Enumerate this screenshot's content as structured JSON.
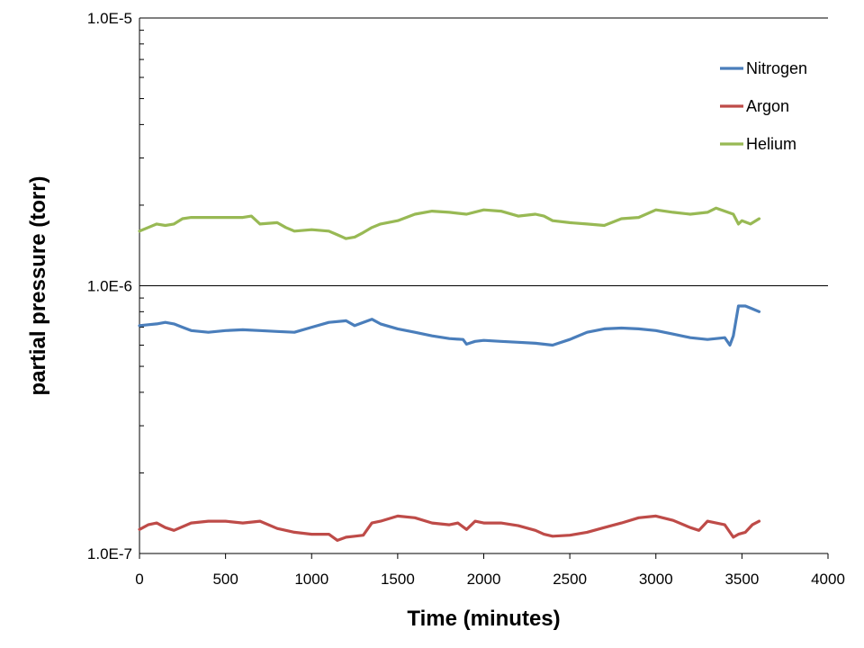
{
  "chart_data": {
    "type": "line",
    "title": "",
    "xlabel": "Time (minutes)",
    "ylabel": "partial pressure (torr)",
    "xlim": [
      0,
      4000
    ],
    "ylim": [
      1e-07,
      1e-05
    ],
    "yscale": "log",
    "x_ticks": [
      0,
      500,
      1000,
      1500,
      2000,
      2500,
      3000,
      3500,
      4000
    ],
    "x_tick_labels": [
      "0",
      "500",
      "1000",
      "1500",
      "2000",
      "2500",
      "3000",
      "3500",
      "4000"
    ],
    "y_ticks": [
      1e-07,
      1e-06,
      1e-05
    ],
    "y_tick_labels": [
      "1.0E-7",
      "1.0E-6",
      "1.0E-5"
    ],
    "grid": "major-y",
    "legend": "top-right",
    "series": [
      {
        "name": "Nitrogen",
        "color": "#4a7ebb",
        "x": [
          0,
          50,
          100,
          150,
          200,
          250,
          300,
          400,
          500,
          600,
          700,
          800,
          900,
          1000,
          1100,
          1200,
          1250,
          1300,
          1350,
          1400,
          1500,
          1600,
          1700,
          1800,
          1880,
          1900,
          1950,
          2000,
          2100,
          2200,
          2300,
          2400,
          2500,
          2600,
          2700,
          2800,
          2900,
          3000,
          3100,
          3200,
          3300,
          3400,
          3430,
          3450,
          3480,
          3520,
          3560,
          3600
        ],
        "y": [
          7.1e-07,
          7.15e-07,
          7.2e-07,
          7.3e-07,
          7.2e-07,
          7e-07,
          6.8e-07,
          6.7e-07,
          6.8e-07,
          6.85e-07,
          6.8e-07,
          6.75e-07,
          6.7e-07,
          7e-07,
          7.3e-07,
          7.4e-07,
          7.1e-07,
          7.3e-07,
          7.5e-07,
          7.2e-07,
          6.9e-07,
          6.7e-07,
          6.5e-07,
          6.35e-07,
          6.3e-07,
          6.05e-07,
          6.2e-07,
          6.25e-07,
          6.2e-07,
          6.15e-07,
          6.1e-07,
          6e-07,
          6.3e-07,
          6.7e-07,
          6.9e-07,
          6.95e-07,
          6.9e-07,
          6.8e-07,
          6.6e-07,
          6.4e-07,
          6.3e-07,
          6.4e-07,
          6e-07,
          6.5e-07,
          8.4e-07,
          8.4e-07,
          8.2e-07,
          8e-07
        ]
      },
      {
        "name": "Argon",
        "color": "#be4b48",
        "x": [
          0,
          50,
          100,
          150,
          200,
          300,
          400,
          500,
          600,
          700,
          800,
          900,
          1000,
          1100,
          1150,
          1200,
          1250,
          1300,
          1350,
          1400,
          1500,
          1600,
          1700,
          1800,
          1850,
          1900,
          1950,
          2000,
          2100,
          2200,
          2300,
          2350,
          2400,
          2500,
          2600,
          2700,
          2800,
          2900,
          3000,
          3100,
          3200,
          3250,
          3300,
          3400,
          3450,
          3480,
          3520,
          3560,
          3600
        ],
        "y": [
          1.23e-07,
          1.28e-07,
          1.3e-07,
          1.25e-07,
          1.22e-07,
          1.3e-07,
          1.32e-07,
          1.32e-07,
          1.3e-07,
          1.32e-07,
          1.24e-07,
          1.2e-07,
          1.18e-07,
          1.18e-07,
          1.12e-07,
          1.15e-07,
          1.16e-07,
          1.17e-07,
          1.3e-07,
          1.32e-07,
          1.38e-07,
          1.36e-07,
          1.3e-07,
          1.28e-07,
          1.3e-07,
          1.23e-07,
          1.32e-07,
          1.3e-07,
          1.3e-07,
          1.27e-07,
          1.22e-07,
          1.18e-07,
          1.16e-07,
          1.17e-07,
          1.2e-07,
          1.25e-07,
          1.3e-07,
          1.36e-07,
          1.38e-07,
          1.33e-07,
          1.25e-07,
          1.22e-07,
          1.32e-07,
          1.28e-07,
          1.15e-07,
          1.18e-07,
          1.2e-07,
          1.28e-07,
          1.32e-07
        ]
      },
      {
        "name": "Helium",
        "color": "#98b954",
        "x": [
          0,
          50,
          100,
          150,
          200,
          250,
          300,
          400,
          500,
          600,
          650,
          700,
          800,
          850,
          900,
          1000,
          1100,
          1150,
          1200,
          1250,
          1300,
          1350,
          1400,
          1500,
          1600,
          1700,
          1800,
          1900,
          2000,
          2100,
          2200,
          2300,
          2350,
          2400,
          2500,
          2600,
          2700,
          2800,
          2900,
          3000,
          3100,
          3200,
          3300,
          3350,
          3400,
          3450,
          3480,
          3500,
          3550,
          3600
        ],
        "y": [
          1.6e-06,
          1.65e-06,
          1.7e-06,
          1.68e-06,
          1.7e-06,
          1.78e-06,
          1.8e-06,
          1.8e-06,
          1.8e-06,
          1.8e-06,
          1.82e-06,
          1.7e-06,
          1.72e-06,
          1.65e-06,
          1.6e-06,
          1.62e-06,
          1.6e-06,
          1.55e-06,
          1.5e-06,
          1.52e-06,
          1.58e-06,
          1.65e-06,
          1.7e-06,
          1.75e-06,
          1.85e-06,
          1.9e-06,
          1.88e-06,
          1.85e-06,
          1.92e-06,
          1.9e-06,
          1.82e-06,
          1.85e-06,
          1.82e-06,
          1.75e-06,
          1.72e-06,
          1.7e-06,
          1.68e-06,
          1.78e-06,
          1.8e-06,
          1.92e-06,
          1.88e-06,
          1.85e-06,
          1.88e-06,
          1.95e-06,
          1.9e-06,
          1.85e-06,
          1.7e-06,
          1.75e-06,
          1.7e-06,
          1.78e-06
        ]
      }
    ]
  }
}
